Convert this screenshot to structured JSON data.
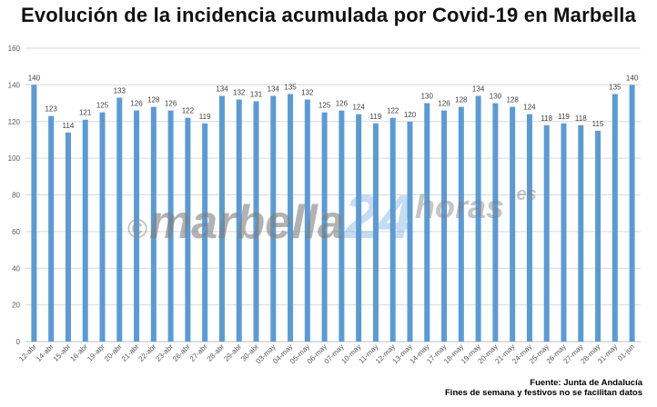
{
  "title": "Evolución de la incidencia acumulada por Covid-19 en Marbella",
  "watermark": {
    "symbol": "©",
    "text_main": "marbella",
    "text_num": "24",
    "text_tail": "horas",
    "text_domain": ".es"
  },
  "footer": {
    "source": "Fuente: Junta de Andalucía",
    "note": "Fines de semana y festivos no se facilitan datos"
  },
  "colors": {
    "bar": "#5b9bd5",
    "grid": "#d9d9d9",
    "axis_text": "#595959",
    "label_text": "#404040"
  },
  "chart_data": {
    "type": "bar",
    "title": "Evolución de la incidencia acumulada por Covid-19 en Marbella",
    "xlabel": "",
    "ylabel": "",
    "ylim": [
      0,
      160
    ],
    "yticks": [
      0,
      20,
      40,
      60,
      80,
      100,
      120,
      140,
      160
    ],
    "grid": true,
    "legend": "none",
    "categories": [
      "12-abr",
      "14-abr",
      "15-abr",
      "16-abr",
      "19-abr",
      "20-abr",
      "21-abr",
      "22-abr",
      "23-abr",
      "26-abr",
      "27-abr",
      "28-abr",
      "29-abr",
      "30-abr",
      "03-may",
      "04-may",
      "05-may",
      "06-may",
      "07-may",
      "10-may",
      "11-may",
      "12-may",
      "13-may",
      "14-may",
      "17-may",
      "18-may",
      "19-may",
      "20-may",
      "21-may",
      "24-may",
      "25-may",
      "26-may",
      "27-may",
      "28-may",
      "31-may",
      "01-jun"
    ],
    "values": [
      140,
      123,
      114,
      121,
      125,
      133,
      126,
      128,
      126,
      122,
      119,
      134,
      132,
      131,
      134,
      135,
      132,
      125,
      126,
      124,
      119,
      122,
      120,
      130,
      126,
      128,
      134,
      130,
      128,
      124,
      118,
      119,
      118,
      115,
      135,
      140
    ]
  }
}
